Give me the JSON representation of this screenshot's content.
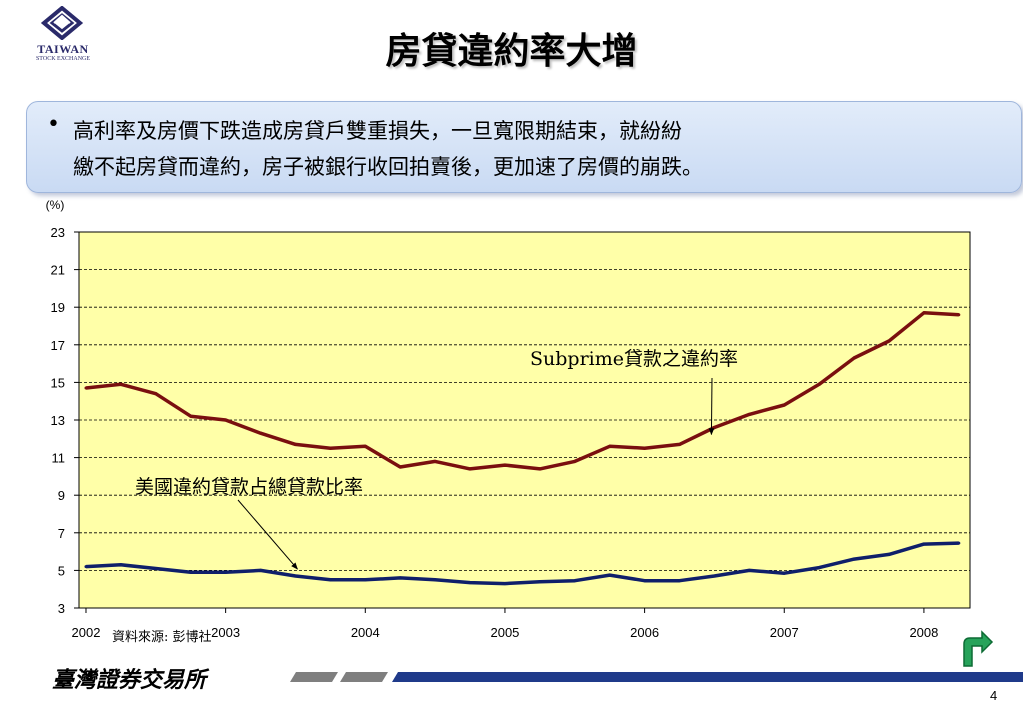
{
  "logo": {
    "name": "TAIWAN",
    "subtitle": "STOCK EXCHANGE",
    "icon": "twse-logo-icon"
  },
  "slide": {
    "title": "房貸違約率大增",
    "bullet": {
      "marker": "•",
      "lines": [
        "高利率及房價下跌造成房貸戶雙重損失，一旦寬限期結束，就紛紛",
        "繳不起房貸而違約，房子被銀行收回拍賣後，更加速了房價的崩跌。"
      ]
    }
  },
  "chart_data": {
    "type": "line",
    "ylabel": "(%)",
    "xlabel": "",
    "ylim": [
      3,
      23
    ],
    "yticks": [
      3,
      5,
      7,
      9,
      11,
      13,
      15,
      17,
      19,
      21,
      23
    ],
    "xlim": [
      2001.95,
      2008.33
    ],
    "xticks": [
      2002,
      2003,
      2004,
      2005,
      2006,
      2007,
      2008
    ],
    "xtick_labels": [
      "2002",
      "2003",
      "2004",
      "2005",
      "2006",
      "2007",
      "2008"
    ],
    "grid": true,
    "background": "#ffffa8",
    "x": [
      2002.0,
      2002.25,
      2002.5,
      2002.75,
      2003.0,
      2003.25,
      2003.5,
      2003.75,
      2004.0,
      2004.25,
      2004.5,
      2004.75,
      2005.0,
      2005.25,
      2005.5,
      2005.75,
      2006.0,
      2006.25,
      2006.5,
      2006.75,
      2007.0,
      2007.25,
      2007.5,
      2007.75,
      2008.0,
      2008.25
    ],
    "series": [
      {
        "name": "Subprime貸款之違約率",
        "color": "#7a0f0f",
        "values": [
          14.7,
          14.9,
          14.4,
          13.2,
          13.0,
          12.3,
          11.7,
          11.5,
          11.6,
          10.5,
          10.8,
          10.4,
          10.6,
          10.4,
          10.8,
          11.6,
          11.5,
          11.7,
          12.6,
          13.3,
          13.8,
          14.9,
          16.3,
          17.2,
          18.7,
          18.6
        ]
      },
      {
        "name": "美國違約貸款占總貸款比率",
        "color": "#0f1f6a",
        "values": [
          5.2,
          5.3,
          5.1,
          4.9,
          4.9,
          5.0,
          4.7,
          4.5,
          4.5,
          4.6,
          4.5,
          4.35,
          4.3,
          4.4,
          4.45,
          4.75,
          4.45,
          4.45,
          4.7,
          5.0,
          4.85,
          5.15,
          5.6,
          5.85,
          6.4,
          6.45
        ]
      }
    ],
    "annotations": [
      {
        "text": "Subprime貸款之違約率",
        "series": 0,
        "point_index": 18
      },
      {
        "text": "美國違約貸款占總貸款比率",
        "series": 1,
        "point_index": 6
      }
    ]
  },
  "source": "資料來源: 彭博社",
  "footer": {
    "name": "臺灣證券交易所",
    "page_number": "4",
    "bar_color": "#1f3a8a",
    "return_icon": "return-arrow-icon"
  }
}
